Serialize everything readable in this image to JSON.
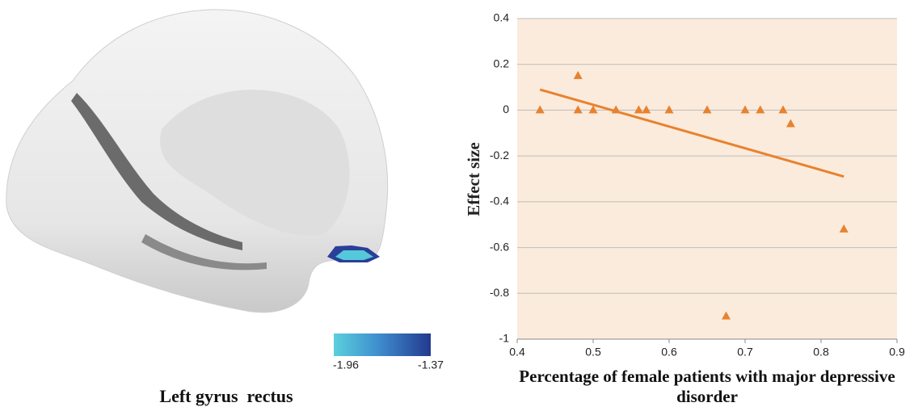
{
  "brain": {
    "label": "Left gyrus  rectus",
    "colorbar_ticks": [
      -1.96,
      -1.37
    ]
  },
  "chart_data": {
    "type": "scatter",
    "x_label": "Percentage of female patients with major depressive disorder",
    "y_label": "Effect size",
    "series": [
      {
        "color": "#e8822f",
        "x": [
          0.43,
          0.48,
          0.48,
          0.5,
          0.53,
          0.56,
          0.57,
          0.6,
          0.65,
          0.675,
          0.7,
          0.72,
          0.75,
          0.76,
          0.83
        ],
        "values": [
          0,
          0.15,
          0,
          0,
          0,
          0,
          0,
          0,
          0,
          -0.9,
          0,
          0,
          0,
          -0.06,
          -0.52
        ]
      }
    ],
    "trendline": {
      "color": "#e8822f",
      "x": [
        0.43,
        0.83
      ],
      "values": [
        0.09,
        -0.29
      ]
    },
    "xlim": [
      0.4,
      0.9
    ],
    "xticks": [
      0.4,
      0.5,
      0.6,
      0.7,
      0.8,
      0.9
    ],
    "ylim": [
      -1,
      0.4
    ],
    "yticks": [
      -1,
      -0.8,
      -0.6,
      -0.4,
      -0.2,
      0,
      0.2,
      0.4
    ],
    "grid": true,
    "background": "#fbebdc"
  }
}
